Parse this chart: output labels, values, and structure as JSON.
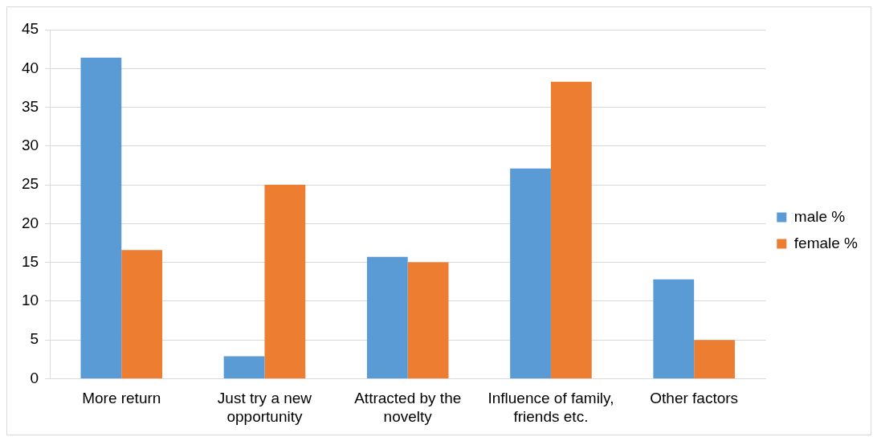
{
  "chart_data": {
    "type": "bar",
    "categories": [
      "More return",
      "Just try a new opportunity",
      "Attracted by the novelty",
      "Influence of family, friends etc.",
      "Other factors"
    ],
    "series": [
      {
        "name": "male %",
        "color": "#5b9bd5",
        "values": [
          41.4,
          2.9,
          15.7,
          27.1,
          12.8
        ]
      },
      {
        "name": "female %",
        "color": "#ed7d31",
        "values": [
          16.6,
          25.0,
          15.0,
          38.3,
          5.0
        ]
      }
    ],
    "ylim": [
      0,
      45
    ],
    "yticks": [
      0,
      5,
      10,
      15,
      20,
      25,
      30,
      35,
      40,
      45
    ],
    "grid": "y",
    "legend": "right"
  }
}
